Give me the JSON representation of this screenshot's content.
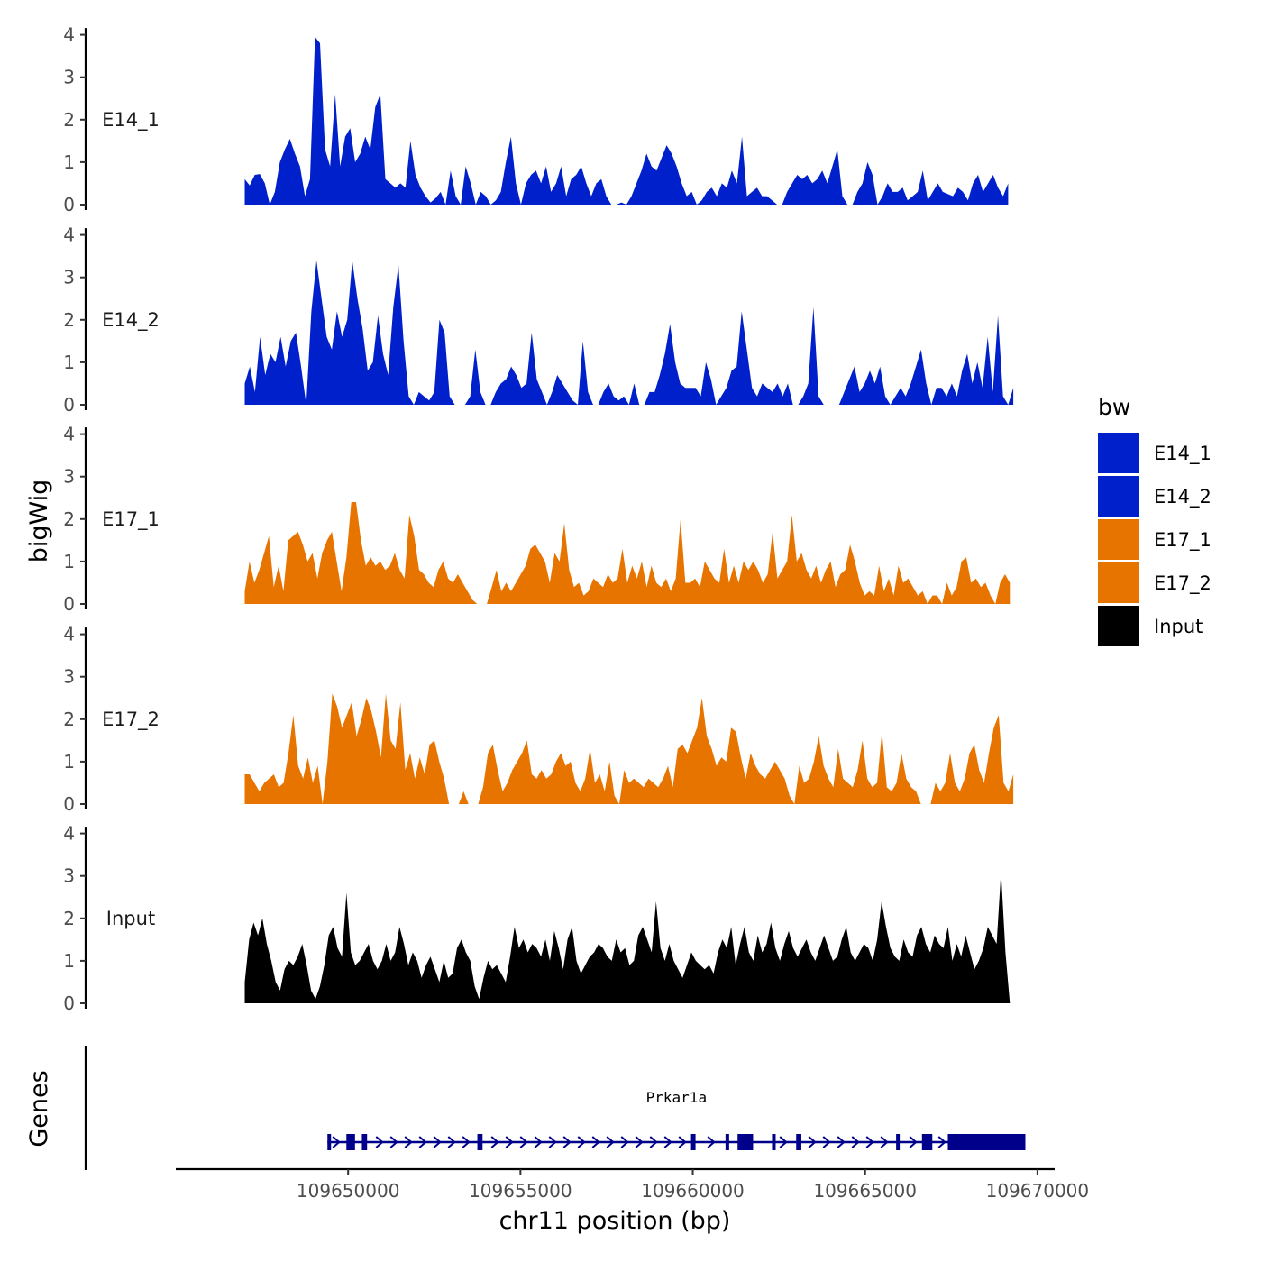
{
  "chart_data": {
    "type": "area",
    "chromosome": "chr11",
    "ylabel": "bigWig",
    "xlabel": "chr11 position (bp)",
    "xlim": [
      109645000,
      109670500
    ],
    "xticks": [
      109650000,
      109655000,
      109660000,
      109665000,
      109670000
    ],
    "xtick_labels": [
      "109650000",
      "109655000",
      "109660000",
      "109665000",
      "109670000"
    ],
    "ylim": [
      0,
      4.2
    ],
    "yticks": [
      0,
      1,
      2,
      3,
      4
    ],
    "ytick_labels": [
      "0",
      "1",
      "2",
      "3",
      "4"
    ],
    "series": [
      {
        "name": "E14_1",
        "color": "#0020CC",
        "x_start": 109647000,
        "x_end": 109669150,
        "values": [
          0.6,
          0.45,
          0.7,
          0.72,
          0.5,
          0,
          0.3,
          1.0,
          1.3,
          1.55,
          1.2,
          0.9,
          0.2,
          0.6,
          3.95,
          3.8,
          1.3,
          0.9,
          2.6,
          0.9,
          1.6,
          1.8,
          1.0,
          1.2,
          1.6,
          1.3,
          2.3,
          2.6,
          0.6,
          0.5,
          0.4,
          0.5,
          0.4,
          1.5,
          0.7,
          0.4,
          0.2,
          0.05,
          0.15,
          0.3,
          0,
          0.8,
          0.2,
          0,
          0.9,
          0.5,
          0,
          0.3,
          0.2,
          0,
          0.1,
          0.3,
          1.0,
          1.6,
          0.5,
          0,
          0.5,
          0.7,
          0.8,
          0.5,
          0.9,
          0.3,
          0.5,
          0.9,
          0.2,
          0.6,
          0.7,
          0.9,
          0.5,
          0.2,
          0.5,
          0.6,
          0.2,
          0,
          0,
          0.05,
          0,
          0.2,
          0.5,
          0.8,
          1.2,
          0.9,
          0.8,
          1.1,
          1.4,
          1.2,
          0.9,
          0.5,
          0.2,
          0.3,
          0,
          0.1,
          0.3,
          0.4,
          0.2,
          0.5,
          0.4,
          0.8,
          0.5,
          1.6,
          0.2,
          0.3,
          0.4,
          0.2,
          0.2,
          0.1,
          0,
          0,
          0.3,
          0.5,
          0.7,
          0.6,
          0.7,
          0.5,
          0.6,
          0.8,
          0.5,
          0.9,
          1.3,
          0.2,
          0,
          0,
          0.3,
          0.5,
          1.0,
          0.7,
          0,
          0.2,
          0.5,
          0.3,
          0.3,
          0.4,
          0.1,
          0.2,
          0.3,
          0.8,
          0.1,
          0.3,
          0.5,
          0.3,
          0.25,
          0.2,
          0.4,
          0.3,
          0.1,
          0.5,
          0.7,
          0.3,
          0.5,
          0.7,
          0.4,
          0.2,
          0.5
        ]
      },
      {
        "name": "E14_2",
        "color": "#0020CC",
        "x_start": 109647000,
        "x_end": 109669300,
        "values": [
          0.5,
          0.9,
          0.3,
          1.6,
          0.7,
          1.2,
          1.0,
          1.6,
          0.9,
          1.5,
          1.7,
          0.9,
          0,
          2.2,
          3.4,
          2.5,
          1.6,
          1.3,
          2.2,
          1.6,
          2.0,
          3.4,
          2.5,
          1.8,
          0.8,
          1.0,
          2.1,
          1.2,
          0.7,
          2.3,
          3.3,
          1.5,
          0.2,
          0,
          0.3,
          0.2,
          0.1,
          0.3,
          2.0,
          1.7,
          0.2,
          0,
          0,
          0,
          0.2,
          1.3,
          0.3,
          0,
          0,
          0.3,
          0.5,
          0.6,
          0.9,
          0.7,
          0.4,
          0.5,
          1.7,
          0.6,
          0.3,
          0,
          0.3,
          0.7,
          0.5,
          0.3,
          0.1,
          0,
          1.5,
          0.3,
          0,
          0,
          0.3,
          0.5,
          0.2,
          0.1,
          0.2,
          0,
          0.5,
          0,
          0,
          0.3,
          0.3,
          0.7,
          1.2,
          1.9,
          1.0,
          0.5,
          0.4,
          0.4,
          0.4,
          0.2,
          1.0,
          0.6,
          0,
          0.2,
          0.4,
          0.8,
          0.9,
          2.2,
          1.3,
          0.4,
          0.2,
          0.5,
          0.4,
          0.3,
          0.5,
          0.2,
          0.5,
          0,
          0,
          0.2,
          0.5,
          2.3,
          0.2,
          0,
          0,
          0,
          0,
          0.3,
          0.6,
          0.9,
          0.3,
          0.5,
          0.8,
          0.5,
          0.9,
          0.2,
          0,
          0.2,
          0.4,
          0.2,
          0.5,
          0.9,
          1.3,
          0.5,
          0,
          0.4,
          0.4,
          0.2,
          0.5,
          0.2,
          0.8,
          1.2,
          0.5,
          1.0,
          0.4,
          1.6,
          0.3,
          2.1,
          0.2,
          0,
          0.4
        ]
      },
      {
        "name": "E17_1",
        "color": "#E87400",
        "x_start": 109647000,
        "x_end": 109669200,
        "values": [
          0.3,
          1.0,
          0.5,
          0.8,
          1.2,
          1.6,
          0.4,
          0.9,
          0.3,
          1.5,
          1.6,
          1.7,
          1.4,
          1.0,
          1.2,
          0.6,
          1.2,
          1.5,
          1.7,
          1.0,
          0.3,
          1.1,
          2.4,
          2.4,
          1.5,
          0.9,
          1.1,
          0.9,
          1.0,
          0.8,
          0.9,
          1.2,
          0.8,
          0.6,
          2.1,
          1.6,
          0.8,
          0.7,
          0.5,
          0.4,
          0.8,
          1.0,
          0.6,
          0.5,
          0.7,
          0.5,
          0.3,
          0.1,
          0,
          0,
          0,
          0.4,
          0.8,
          0.3,
          0.5,
          0.3,
          0.5,
          0.7,
          0.9,
          1.3,
          1.4,
          1.2,
          1.0,
          0.5,
          1.2,
          1.0,
          1.9,
          0.8,
          0.4,
          0.5,
          0.2,
          0.3,
          0.6,
          0.5,
          0.4,
          0.7,
          0.5,
          0.6,
          1.3,
          0.5,
          0.9,
          0.6,
          1.0,
          0.4,
          0.9,
          0.5,
          0.4,
          0.6,
          0.3,
          0.6,
          2.0,
          0.5,
          0.5,
          0.6,
          0.4,
          1.0,
          0.8,
          0.6,
          0.5,
          1.3,
          0.5,
          0.9,
          0.5,
          1.0,
          0.8,
          1.0,
          0.8,
          0.5,
          0.7,
          1.7,
          0.6,
          0.8,
          1.0,
          2.1,
          1.0,
          1.2,
          0.8,
          0.6,
          0.9,
          0.5,
          0.8,
          1.0,
          0.4,
          0.7,
          0.8,
          1.4,
          1.0,
          0.5,
          0.2,
          0.3,
          0.2,
          0.9,
          0.3,
          0.6,
          0.2,
          0.9,
          0.5,
          0.6,
          0.4,
          0.2,
          0.3,
          0,
          0.2,
          0.2,
          0,
          0.5,
          0.2,
          0.4,
          1.0,
          1.1,
          0.5,
          0.6,
          0.4,
          0.5,
          0.2,
          0,
          0.5,
          0.7,
          0.5
        ]
      },
      {
        "name": "E17_2",
        "color": "#E87400",
        "x_start": 109647000,
        "x_end": 109669300,
        "values": [
          0.7,
          0.7,
          0.5,
          0.3,
          0.5,
          0.6,
          0.7,
          0.4,
          0.5,
          1.2,
          2.1,
          0.9,
          0.6,
          1.1,
          0.5,
          0.9,
          0,
          1.0,
          2.6,
          2.3,
          1.8,
          2.1,
          2.4,
          1.6,
          2.0,
          2.5,
          2.2,
          1.7,
          1.1,
          2.6,
          1.5,
          1.3,
          2.4,
          0.8,
          1.2,
          0.6,
          1.1,
          0.7,
          1.4,
          1.5,
          1.0,
          0.6,
          0,
          0,
          0,
          0.3,
          0,
          0,
          0,
          0.4,
          1.2,
          1.4,
          0.8,
          0.3,
          0.5,
          0.8,
          1.0,
          1.2,
          1.5,
          0.7,
          0.6,
          0.8,
          0.6,
          0.7,
          1.0,
          1.2,
          0.9,
          1.0,
          0.5,
          0.3,
          0.6,
          1.3,
          0.5,
          0.7,
          0.3,
          1.0,
          0.2,
          0,
          0.8,
          0.5,
          0.6,
          0.5,
          0.4,
          0.6,
          0.5,
          0.4,
          0.6,
          0.9,
          0.4,
          1.3,
          1.4,
          1.2,
          1.5,
          1.8,
          2.5,
          1.6,
          1.3,
          0.9,
          1.1,
          1.0,
          1.8,
          1.7,
          1.1,
          0.6,
          1.2,
          0.9,
          0.7,
          0.6,
          0.8,
          1.0,
          0.8,
          0.6,
          0.2,
          0,
          0.9,
          0.5,
          0.6,
          1.0,
          1.6,
          0.9,
          0.6,
          0.4,
          1.3,
          0.6,
          0.5,
          0.4,
          0.8,
          1.5,
          0.6,
          0.4,
          0.5,
          1.7,
          0.4,
          0.3,
          0.5,
          1.2,
          0.6,
          0.4,
          0.3,
          0,
          0,
          0,
          0.5,
          0.3,
          0.5,
          1.2,
          0.5,
          0.3,
          0.6,
          1.2,
          1.4,
          0.8,
          0.5,
          1.2,
          1.8,
          2.1,
          0.5,
          0.3,
          0.7
        ]
      },
      {
        "name": "Input",
        "color": "#000000",
        "x_start": 109647000,
        "x_end": 109669200,
        "values": [
          0.5,
          1.5,
          1.9,
          1.6,
          2.0,
          1.4,
          1.0,
          0.5,
          0.3,
          0.8,
          1.0,
          0.9,
          1.1,
          1.4,
          0.9,
          0.3,
          0.1,
          0.4,
          0.9,
          1.6,
          1.8,
          1.3,
          1.1,
          2.6,
          1.2,
          0.9,
          1.0,
          1.2,
          1.4,
          1.0,
          0.8,
          1.0,
          1.4,
          1.0,
          1.2,
          1.8,
          1.4,
          0.9,
          1.2,
          1.0,
          0.6,
          0.9,
          1.1,
          0.8,
          0.5,
          1.0,
          0.6,
          0.7,
          1.3,
          1.5,
          1.2,
          1.0,
          0.4,
          0.1,
          0.6,
          1.0,
          0.8,
          0.9,
          0.7,
          0.5,
          1.1,
          1.8,
          1.3,
          1.5,
          1.2,
          1.4,
          1.3,
          1.1,
          1.5,
          1.0,
          1.7,
          1.3,
          0.8,
          1.5,
          1.8,
          1.0,
          0.7,
          0.9,
          1.1,
          1.2,
          1.4,
          1.3,
          1.1,
          1.0,
          1.5,
          1.2,
          1.3,
          0.9,
          1.0,
          1.6,
          1.8,
          1.5,
          1.2,
          2.4,
          1.3,
          1.0,
          1.4,
          1.0,
          0.8,
          0.6,
          0.9,
          1.2,
          1.0,
          0.9,
          0.8,
          0.9,
          0.7,
          1.2,
          1.5,
          1.3,
          1.8,
          0.9,
          1.4,
          1.8,
          1.2,
          1.0,
          1.6,
          1.2,
          1.4,
          1.9,
          1.3,
          1.0,
          1.4,
          1.7,
          1.3,
          1.1,
          1.3,
          1.5,
          1.2,
          1.0,
          1.3,
          1.6,
          1.3,
          1.0,
          1.1,
          1.5,
          1.8,
          1.2,
          1.0,
          1.2,
          1.4,
          1.3,
          1.0,
          1.5,
          2.4,
          1.8,
          1.3,
          1.1,
          1.0,
          1.5,
          1.2,
          1.1,
          1.6,
          1.8,
          1.4,
          1.2,
          1.6,
          1.4,
          1.3,
          1.8,
          1.0,
          1.4,
          1.1,
          1.6,
          1.2,
          0.8,
          1.0,
          1.3,
          1.8,
          1.6,
          1.4,
          3.1,
          1.2,
          0.0
        ]
      }
    ],
    "legend": {
      "title": "bw",
      "position": "right",
      "entries": [
        {
          "label": "E14_1",
          "color": "#0020CC"
        },
        {
          "label": "E14_2",
          "color": "#0020CC"
        },
        {
          "label": "E17_1",
          "color": "#E87400"
        },
        {
          "label": "E17_2",
          "color": "#E87400"
        },
        {
          "label": "Input",
          "color": "#000000"
        }
      ]
    },
    "genes_track": {
      "label": "Genes",
      "color": "#00008B",
      "genes": [
        {
          "name": "Prkar1a",
          "strand": "+",
          "start": 109649400,
          "end": 109669650,
          "exons": [
            [
              109649400,
              109649500
            ],
            [
              109649950,
              109650200
            ],
            [
              109650400,
              109650550
            ],
            [
              109653750,
              109653900
            ],
            [
              109659950,
              109660080
            ],
            [
              109660950,
              109661050
            ],
            [
              109661300,
              109661750
            ],
            [
              109662300,
              109662380
            ],
            [
              109663000,
              109663150
            ],
            [
              109665900,
              109666000
            ],
            [
              109666650,
              109666950
            ],
            [
              109667400,
              109669650
            ]
          ]
        }
      ]
    }
  }
}
